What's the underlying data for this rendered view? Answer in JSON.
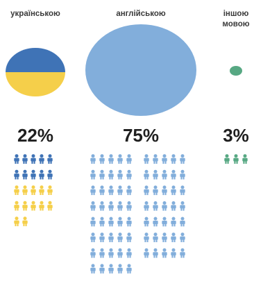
{
  "chart_data": {
    "type": "pictogram",
    "title": "",
    "categories": [
      "українською",
      "англійською",
      "іншою мовою"
    ],
    "values": [
      22,
      75,
      3
    ],
    "percent_labels": [
      "22%",
      "75%",
      "3%"
    ],
    "unit": "%",
    "icon": "person-icon",
    "icons_per_category": [
      22,
      75,
      3
    ],
    "colors": {
      "ukrainian_blue": "#3f73b6",
      "ukrainian_yellow": "#f5cf4a",
      "english": "#82aedb",
      "other": "#57a883"
    }
  },
  "labels": {
    "ukrainian": "українською",
    "english": "англійською",
    "other_line1": "іншою",
    "other_line2": "мовою"
  }
}
